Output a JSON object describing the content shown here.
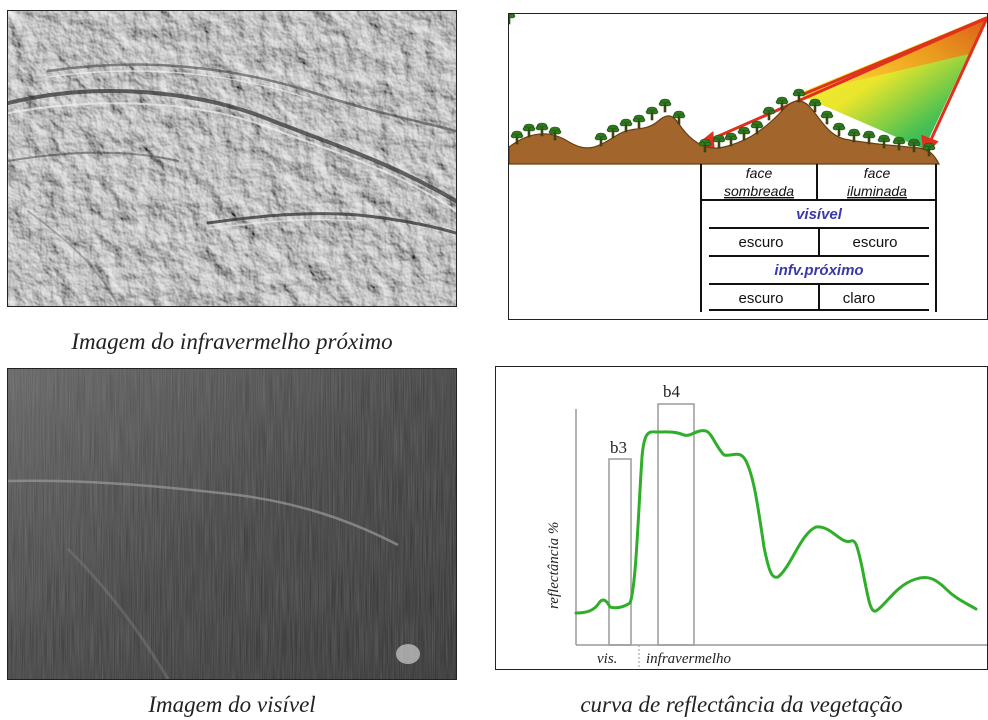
{
  "captions": {
    "nir_image": "Imagem do infravermelho próximo",
    "visible_image": "Imagem do visível",
    "reflectance_curve": "curva de reflectância da vegetação"
  },
  "terrain_diagram": {
    "face_shaded": [
      "face",
      "sombreada"
    ],
    "face_lit": [
      "face",
      "iluminada"
    ],
    "visible_label": "visível",
    "visible_row": [
      "escuro",
      "escuro"
    ],
    "nir_label": "infv.próximo",
    "nir_row": [
      "escuro",
      "claro"
    ],
    "colors": {
      "soil": "#a2652b",
      "soil_edge": "#6b3d14",
      "tree": "#2f7a1e",
      "ray": "#e0301e",
      "band_label": "#3a3aa6"
    }
  },
  "reflectance": {
    "ylabel": "reflectância %",
    "band_b3": "b3",
    "band_b4": "b4",
    "region_vis": "vis.",
    "region_nir": "infravermelho",
    "curve_color": "#2fae2a"
  }
}
